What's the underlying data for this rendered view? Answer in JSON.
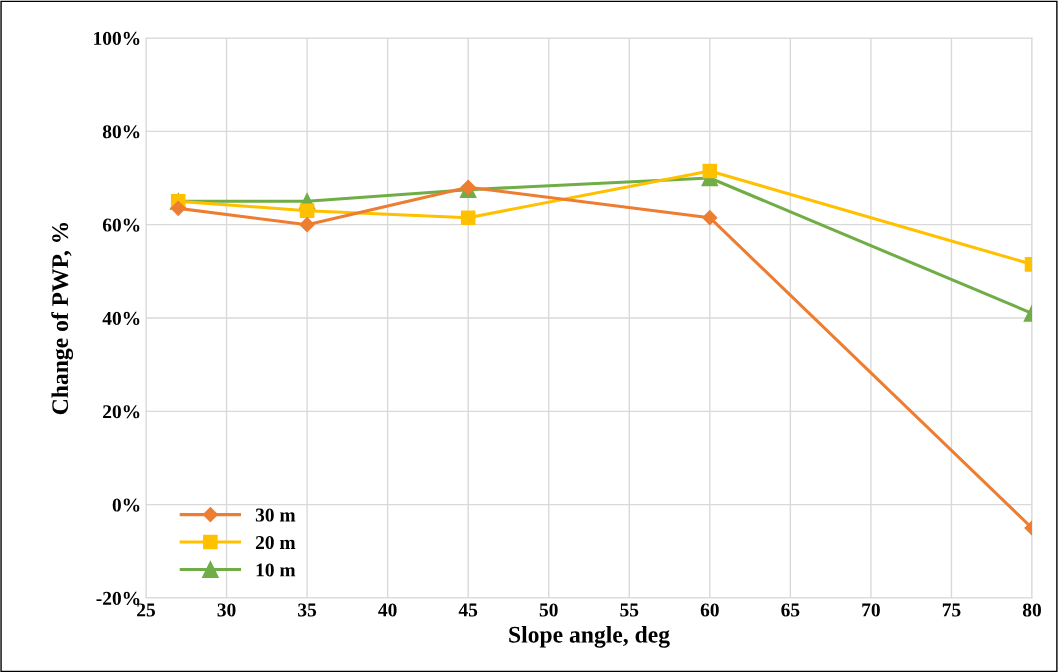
{
  "chart_data": {
    "type": "line",
    "xlabel": "Slope angle, deg",
    "ylabel": "Change of PWP, %",
    "x": [
      27,
      35,
      45,
      60,
      80
    ],
    "series": [
      {
        "name": "30 m",
        "color": "#ed7d31",
        "marker": "diamond",
        "values": [
          63.5,
          60,
          68,
          61.5,
          -5
        ]
      },
      {
        "name": "20 m",
        "color": "#ffc000",
        "marker": "square",
        "values": [
          65,
          63,
          61.5,
          71.5,
          51.5
        ]
      },
      {
        "name": "10 m",
        "color": "#70ad47",
        "marker": "triangle",
        "values": [
          65,
          65,
          67.5,
          70,
          41
        ]
      }
    ],
    "xlim": [
      25,
      80
    ],
    "xticks": [
      25,
      30,
      35,
      40,
      45,
      50,
      55,
      60,
      65,
      70,
      75,
      80
    ],
    "ylim": [
      -20,
      100
    ],
    "yticks": [
      {
        "value": -20,
        "label": "-20%"
      },
      {
        "value": 0,
        "label": "0%"
      },
      {
        "value": 20,
        "label": "20%"
      },
      {
        "value": 40,
        "label": "40%"
      },
      {
        "value": 60,
        "label": "60%"
      },
      {
        "value": 80,
        "label": "80%"
      },
      {
        "value": 100,
        "label": "100%"
      }
    ],
    "grid": true,
    "legend": "bottom left",
    "line_style": "solid"
  }
}
